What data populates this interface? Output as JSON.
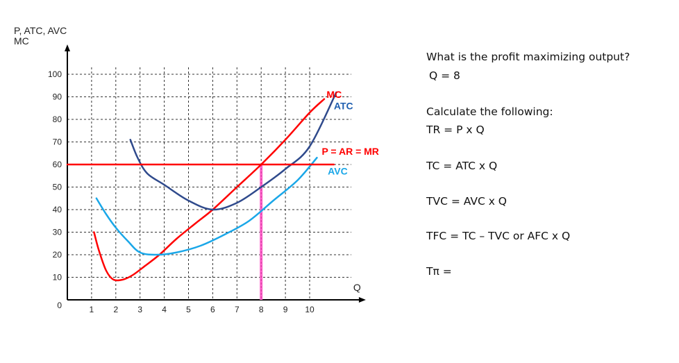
{
  "chart_data": {
    "type": "line",
    "title": "",
    "ylabel": [
      "P, ATC, AVC",
      "MC"
    ],
    "xlabel": "Q",
    "origin_label": "0",
    "xlim": [
      0,
      11
    ],
    "ylim": [
      0,
      100
    ],
    "x_ticks": [
      1,
      2,
      3,
      4,
      5,
      6,
      7,
      8,
      9,
      10
    ],
    "y_ticks": [
      10,
      20,
      30,
      40,
      50,
      60,
      70,
      80,
      90,
      100
    ],
    "grid": "dashed",
    "series": [
      {
        "name": "MC",
        "color": "#ff0000",
        "points": [
          [
            1.1,
            30
          ],
          [
            1.3,
            22
          ],
          [
            1.6,
            13
          ],
          [
            1.9,
            9
          ],
          [
            2.3,
            9
          ],
          [
            2.7,
            11
          ],
          [
            3.2,
            15
          ],
          [
            3.8,
            20
          ],
          [
            4.5,
            27
          ],
          [
            5.3,
            34
          ],
          [
            6,
            40
          ],
          [
            7,
            50
          ],
          [
            8,
            60
          ],
          [
            9,
            71
          ],
          [
            10,
            83
          ],
          [
            10.6,
            89
          ]
        ]
      },
      {
        "name": "ATC",
        "color": "#2f4a8c",
        "points": [
          [
            2.6,
            71
          ],
          [
            2.9,
            63
          ],
          [
            3.3,
            56
          ],
          [
            4,
            51
          ],
          [
            5,
            44
          ],
          [
            6,
            40
          ],
          [
            7,
            43
          ],
          [
            8,
            50
          ],
          [
            9,
            58
          ],
          [
            10,
            68
          ],
          [
            11.1,
            92
          ]
        ]
      },
      {
        "name": "AVC",
        "color": "#1aa7e8",
        "points": [
          [
            1.2,
            45
          ],
          [
            1.6,
            38
          ],
          [
            2,
            32
          ],
          [
            2.5,
            26
          ],
          [
            3,
            21
          ],
          [
            3.7,
            20
          ],
          [
            4.5,
            21
          ],
          [
            5.5,
            24
          ],
          [
            6.5,
            29
          ],
          [
            7.5,
            35
          ],
          [
            8.5,
            44
          ],
          [
            9.5,
            53
          ],
          [
            10.3,
            63
          ]
        ]
      },
      {
        "name": "P = AR = MR",
        "color": "#ff0000",
        "points": [
          [
            0,
            60
          ],
          [
            11,
            60
          ]
        ]
      }
    ],
    "highlight": {
      "x": 8,
      "color": "#ff66cc"
    },
    "labels": [
      {
        "text": "MC",
        "x": 10.7,
        "y": 89.5,
        "color": "#ff0000"
      },
      {
        "text": "ATC",
        "x": 11.0,
        "y": 84.5,
        "color": "#1f5fb0"
      },
      {
        "text": "P = AR = MR",
        "x": 10.5,
        "y": 64.3,
        "color": "#ff0000"
      },
      {
        "text": "AVC",
        "x": 10.75,
        "y": 55.5,
        "color": "#1aa7e8"
      }
    ]
  },
  "questions": {
    "q1": "What is the profit maximizing output?",
    "a1": "Q = 8",
    "q2": "Calculate the following:",
    "tr": "TR = P x Q",
    "tc": "TC = ATC x Q",
    "tvc": "TVC = AVC x Q",
    "tfc": "TFC = TC – TVC or AFC x Q",
    "tpi": "Tπ ="
  }
}
